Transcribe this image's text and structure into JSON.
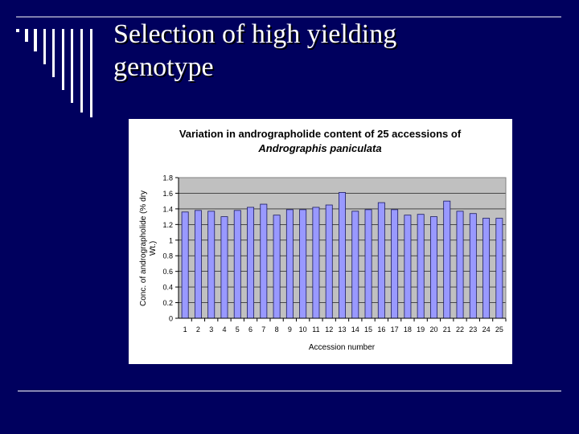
{
  "slide": {
    "title_line1": "Selection of high yielding",
    "title_line2": "genotype",
    "background_color": "#00005e"
  },
  "chart_data": {
    "type": "bar",
    "title_line1": "Variation in andrographolide content of 25 accessions of",
    "title_line2": "Andrographis paniculata",
    "xlabel": "Accession number",
    "ylabel_line1": "Conc. of andrographolide (% dry",
    "ylabel_line2": "Wt.)",
    "categories": [
      "1",
      "2",
      "3",
      "4",
      "5",
      "6",
      "7",
      "8",
      "9",
      "10",
      "11",
      "12",
      "13",
      "14",
      "15",
      "16",
      "17",
      "18",
      "19",
      "20",
      "21",
      "22",
      "23",
      "24",
      "25"
    ],
    "values": [
      1.36,
      1.38,
      1.37,
      1.3,
      1.38,
      1.42,
      1.46,
      1.32,
      1.39,
      1.39,
      1.42,
      1.45,
      1.61,
      1.37,
      1.39,
      1.48,
      1.39,
      1.32,
      1.33,
      1.3,
      1.5,
      1.37,
      1.34,
      1.28,
      1.28
    ],
    "ylim": [
      0,
      1.8
    ],
    "yticks": [
      0,
      0.2,
      0.4,
      0.6,
      0.8,
      1,
      1.2,
      1.4,
      1.6,
      1.8
    ],
    "ytick_labels": [
      "0",
      "0.2",
      "0.4",
      "0.6",
      "0.8",
      "1",
      "1.2",
      "1.4",
      "1.6",
      "1.8"
    ],
    "grid": true,
    "bar_color": "#9999ff",
    "plot_bg_color": "#c0c0c0"
  }
}
